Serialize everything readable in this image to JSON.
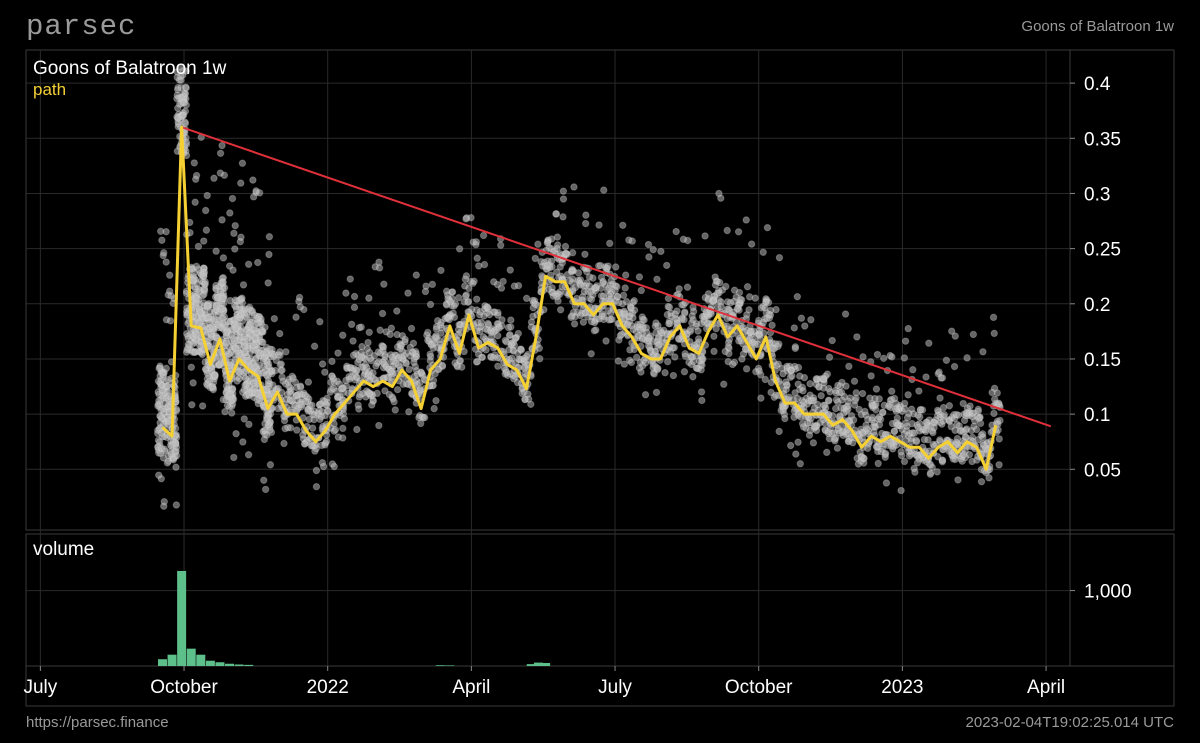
{
  "header": {
    "brand": "parsec",
    "title": "Goons of Balatroon 1w"
  },
  "footer": {
    "url": "https://parsec.finance",
    "timestamp": "2023-02-04T19:02:25.014 UTC"
  },
  "colors": {
    "background": "#000000",
    "frame": "#3a3a3a",
    "grid": "#2a2a2a",
    "scatter": "#b8b8b8",
    "path": "#f5d033",
    "trend": "#e0303a",
    "volume": "#5dbf8a"
  },
  "chart_data": {
    "type": "scatter",
    "title": "Goons of Balatroon 1w",
    "x_ticks": [
      "July",
      "October",
      "2022",
      "April",
      "July",
      "October",
      "2023",
      "April"
    ],
    "y_ticks": [
      "0.4",
      "0.35",
      "0.3",
      "0.25",
      "0.2",
      "0.15",
      "0.1",
      "0.05"
    ],
    "y_tick_values": [
      0.4,
      0.35,
      0.3,
      0.25,
      0.2,
      0.15,
      0.1,
      0.05
    ],
    "ylim": [
      -0.005,
      0.43
    ],
    "x_range_months": [
      -0.3,
      21.5
    ],
    "series": [
      {
        "name": "path",
        "x": [
          2.55,
          2.75,
          2.95,
          3.15,
          3.35,
          3.55,
          3.75,
          3.95,
          4.15,
          4.35,
          4.55,
          4.75,
          4.95,
          5.15,
          5.35,
          5.55,
          5.75,
          5.95,
          6.15,
          6.35,
          6.55,
          6.75,
          6.95,
          7.15,
          7.35,
          7.55,
          7.75,
          7.95,
          8.15,
          8.35,
          8.55,
          8.75,
          8.95,
          9.15,
          9.35,
          9.55,
          9.75,
          9.95,
          10.15,
          10.35,
          10.55,
          10.75,
          10.95,
          11.15,
          11.35,
          11.55,
          11.75,
          11.95,
          12.15,
          12.35,
          12.55,
          12.75,
          12.95,
          13.15,
          13.35,
          13.55,
          13.75,
          13.95,
          14.15,
          14.35,
          14.55,
          14.75,
          14.95,
          15.15,
          15.35,
          15.55,
          15.75,
          15.95,
          16.15,
          16.35,
          16.55,
          16.75,
          16.95,
          17.15,
          17.35,
          17.55,
          17.75,
          17.95,
          18.15,
          18.35,
          18.55,
          18.75,
          18.95,
          19.15,
          19.35,
          19.55,
          19.75,
          19.95
        ],
        "y": [
          0.088,
          0.08,
          0.36,
          0.18,
          0.178,
          0.145,
          0.168,
          0.13,
          0.15,
          0.14,
          0.134,
          0.105,
          0.12,
          0.1,
          0.1,
          0.085,
          0.075,
          0.085,
          0.1,
          0.11,
          0.12,
          0.13,
          0.125,
          0.13,
          0.125,
          0.14,
          0.13,
          0.105,
          0.14,
          0.15,
          0.18,
          0.155,
          0.19,
          0.16,
          0.165,
          0.16,
          0.145,
          0.14,
          0.123,
          0.17,
          0.225,
          0.22,
          0.22,
          0.2,
          0.2,
          0.19,
          0.2,
          0.2,
          0.18,
          0.17,
          0.155,
          0.15,
          0.15,
          0.17,
          0.18,
          0.16,
          0.155,
          0.175,
          0.19,
          0.17,
          0.18,
          0.165,
          0.15,
          0.17,
          0.13,
          0.11,
          0.11,
          0.1,
          0.1,
          0.1,
          0.09,
          0.095,
          0.085,
          0.07,
          0.08,
          0.075,
          0.08,
          0.075,
          0.07,
          0.07,
          0.06,
          0.07,
          0.075,
          0.065,
          0.075,
          0.07,
          0.05,
          0.09
        ]
      },
      {
        "name": "trend",
        "x": [
          2.95,
          21.1
        ],
        "y": [
          0.36,
          0.089
        ]
      }
    ],
    "volume": {
      "title": "volume",
      "y_ticks": [
        "1,000"
      ],
      "y_tick_values": [
        1000
      ],
      "ylim": [
        0,
        1750
      ],
      "x": [
        2.55,
        2.75,
        2.95,
        3.15,
        3.35,
        3.55,
        3.75,
        3.95,
        4.15,
        4.35,
        8.35,
        8.55,
        10.25,
        10.4,
        10.55
      ],
      "values": [
        90,
        150,
        1260,
        230,
        150,
        70,
        50,
        30,
        20,
        15,
        10,
        8,
        25,
        45,
        40
      ]
    }
  }
}
